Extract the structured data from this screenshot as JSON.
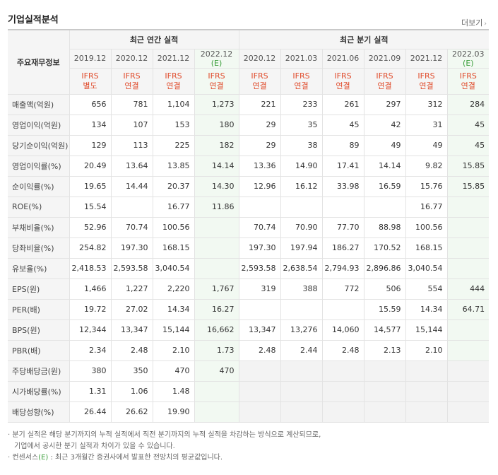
{
  "title": "기업실적분석",
  "more_label": "더보기",
  "header": {
    "row_label": "주요재무정보",
    "annual_group": "최근 연간 실적",
    "quarter_group": "최근 분기 실적",
    "annual_periods": [
      "2019.12",
      "2020.12",
      "2021.12",
      "2022.12"
    ],
    "quarter_periods": [
      "2020.12",
      "2021.03",
      "2021.06",
      "2021.09",
      "2021.12",
      "2022.03"
    ],
    "estimate_mark": "(E)",
    "annual_basis": [
      [
        "IFRS",
        "별도"
      ],
      [
        "IFRS",
        "연결"
      ],
      [
        "IFRS",
        "연결"
      ],
      [
        "IFRS",
        "연결"
      ]
    ],
    "quarter_basis": [
      [
        "IFRS",
        "연결"
      ],
      [
        "IFRS",
        "연결"
      ],
      [
        "IFRS",
        "연결"
      ],
      [
        "IFRS",
        "연결"
      ],
      [
        "IFRS",
        "연결"
      ],
      [
        "IFRS",
        "연결"
      ]
    ]
  },
  "rows": [
    {
      "label": "매출액(억원)",
      "annual": [
        "656",
        "781",
        "1,104",
        "1,273"
      ],
      "quarter": [
        "221",
        "233",
        "261",
        "297",
        "312",
        "284"
      ]
    },
    {
      "label": "영업이익(억원)",
      "annual": [
        "134",
        "107",
        "153",
        "180"
      ],
      "quarter": [
        "29",
        "35",
        "45",
        "42",
        "31",
        "45"
      ]
    },
    {
      "label": "당기순이익(억원)",
      "annual": [
        "129",
        "113",
        "225",
        "182"
      ],
      "quarter": [
        "29",
        "38",
        "89",
        "49",
        "49",
        "45"
      ]
    },
    {
      "label": "영업이익률(%)",
      "annual": [
        "20.49",
        "13.64",
        "13.85",
        "14.14"
      ],
      "quarter": [
        "13.36",
        "14.90",
        "17.41",
        "14.14",
        "9.82",
        "15.85"
      ]
    },
    {
      "label": "순이익률(%)",
      "annual": [
        "19.65",
        "14.44",
        "20.37",
        "14.30"
      ],
      "quarter": [
        "12.96",
        "16.12",
        "33.98",
        "16.59",
        "15.76",
        "15.85"
      ]
    },
    {
      "label": "ROE(%)",
      "annual": [
        "15.54",
        "",
        "16.77",
        "11.86"
      ],
      "quarter": [
        "",
        "",
        "",
        "",
        "16.77",
        ""
      ]
    },
    {
      "label": "부채비율(%)",
      "annual": [
        "52.96",
        "70.74",
        "100.56",
        ""
      ],
      "quarter": [
        "70.74",
        "70.90",
        "77.70",
        "88.98",
        "100.56",
        ""
      ]
    },
    {
      "label": "당좌비율(%)",
      "annual": [
        "254.82",
        "197.30",
        "168.15",
        ""
      ],
      "quarter": [
        "197.30",
        "197.94",
        "186.27",
        "170.52",
        "168.15",
        ""
      ]
    },
    {
      "label": "유보율(%)",
      "annual": [
        "2,418.53",
        "2,593.58",
        "3,040.54",
        ""
      ],
      "quarter": [
        "2,593.58",
        "2,638.54",
        "2,794.93",
        "2,896.86",
        "3,040.54",
        ""
      ]
    },
    {
      "label": "EPS(원)",
      "annual": [
        "1,466",
        "1,227",
        "2,220",
        "1,767"
      ],
      "quarter": [
        "319",
        "388",
        "772",
        "506",
        "554",
        "444"
      ]
    },
    {
      "label": "PER(배)",
      "annual": [
        "19.72",
        "27.02",
        "14.34",
        "16.27"
      ],
      "quarter": [
        "",
        "",
        "",
        "15.59",
        "14.34",
        "64.71"
      ]
    },
    {
      "label": "BPS(원)",
      "annual": [
        "12,344",
        "13,347",
        "15,144",
        "16,662"
      ],
      "quarter": [
        "13,347",
        "13,276",
        "14,060",
        "14,577",
        "15,144",
        ""
      ]
    },
    {
      "label": "PBR(배)",
      "annual": [
        "2.34",
        "2.48",
        "2.10",
        "1.73"
      ],
      "quarter": [
        "2.48",
        "2.44",
        "2.48",
        "2.13",
        "2.10",
        ""
      ]
    },
    {
      "label": "주당배당금(원)",
      "annual": [
        "380",
        "350",
        "470",
        "470"
      ],
      "quarter": null
    },
    {
      "label": "시가배당률(%)",
      "annual": [
        "1.31",
        "1.06",
        "1.48",
        ""
      ],
      "quarter": null
    },
    {
      "label": "배당성향(%)",
      "annual": [
        "26.44",
        "26.62",
        "19.90",
        ""
      ],
      "quarter": null
    }
  ],
  "notes": {
    "line1": "· 분기 실적은 해당 분기까지의 누적 실적에서 직전 분기까지의 누적 실적을 차감하는 방식으로 계산되므로,",
    "line2": "기업에서 공시한 분기 실적과 차이가 있을 수 있습니다.",
    "line3_prefix": "· 컨센서스",
    "line3_mark": "(E)",
    "line3_suffix": " : 최근 3개월간 증권사에서 발표한 전망치의 평균값입니다."
  }
}
